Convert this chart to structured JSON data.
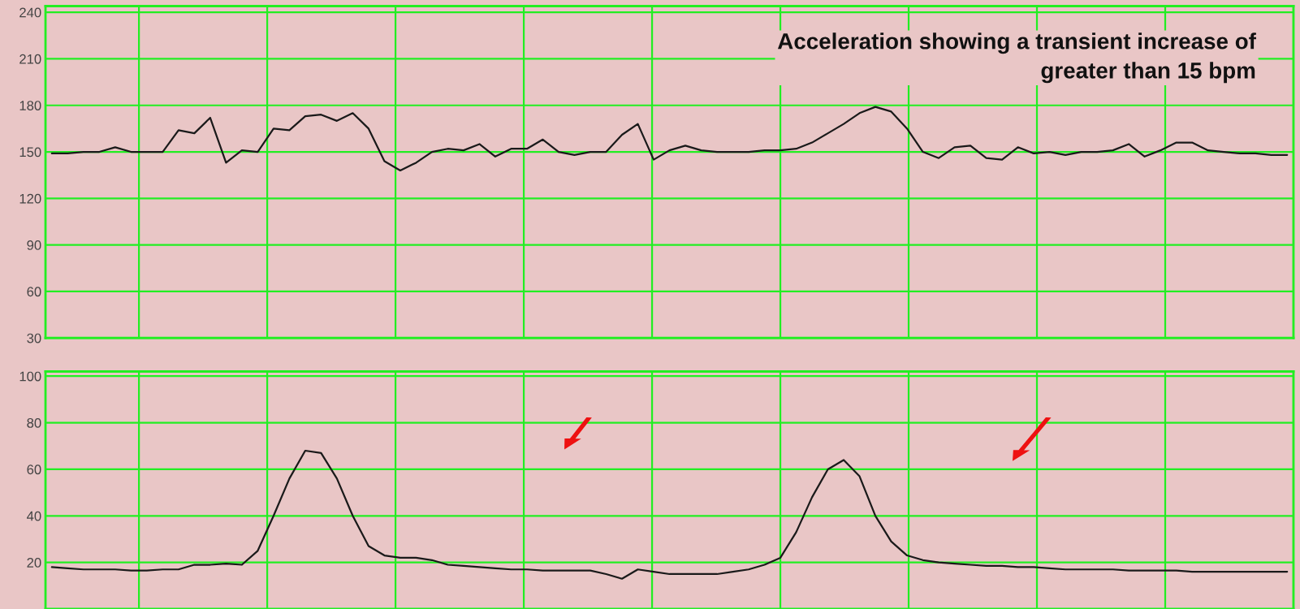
{
  "chart_data": [
    {
      "type": "line",
      "color": "#1a1a1a",
      "ylim": [
        30,
        244
      ],
      "yticks": [
        30,
        60,
        90,
        120,
        150,
        180,
        210,
        240
      ],
      "grid": true,
      "tick_labels": "y",
      "line_style": "solid",
      "categories": [
        null,
        null,
        null,
        null,
        null,
        null,
        null,
        null,
        null,
        null,
        null,
        null,
        null,
        null,
        null,
        null,
        null,
        null,
        null,
        null,
        null,
        null,
        null,
        null,
        null,
        null,
        null,
        null,
        null,
        null,
        null,
        null,
        null,
        null,
        null,
        null,
        null,
        null,
        null,
        null,
        null,
        null,
        null,
        null,
        null,
        null,
        null,
        null,
        null,
        null,
        null,
        null,
        null,
        null,
        null,
        null,
        null,
        null,
        null,
        null,
        null,
        null,
        null,
        null,
        null,
        null,
        null,
        null,
        null,
        null,
        null,
        null,
        null,
        null,
        null,
        null,
        null,
        null,
        null
      ],
      "values": [
        149,
        149,
        150,
        150,
        153,
        150,
        150,
        150,
        164,
        162,
        172,
        143,
        151,
        150,
        165,
        164,
        173,
        174,
        170,
        175,
        165,
        144,
        138,
        143,
        150,
        152,
        151,
        155,
        147,
        152,
        152,
        158,
        150,
        148,
        150,
        150,
        161,
        168,
        145,
        151,
        154,
        151,
        150,
        150,
        150,
        151,
        151,
        152,
        156,
        162,
        168,
        175,
        179,
        176,
        165,
        150,
        146,
        153,
        154,
        146,
        145,
        153,
        149,
        150,
        148,
        150,
        150,
        151,
        155,
        147,
        151,
        156,
        156,
        151,
        150,
        149,
        149,
        148,
        148
      ],
      "annotations": [
        "Acceleration showing a transient increase of\n          greater than 15 bpm"
      ]
    },
    {
      "type": "line",
      "color": "#1a1a1a",
      "ylim": [
        0,
        102
      ],
      "yticks": [
        20,
        40,
        60,
        80,
        100
      ],
      "grid": true,
      "tick_labels": "y",
      "line_style": "solid",
      "categories": [
        null,
        null,
        null,
        null,
        null,
        null,
        null,
        null,
        null,
        null,
        null,
        null,
        null,
        null,
        null,
        null,
        null,
        null,
        null,
        null,
        null,
        null,
        null,
        null,
        null,
        null,
        null,
        null,
        null,
        null,
        null,
        null,
        null,
        null,
        null,
        null,
        null,
        null,
        null,
        null,
        null,
        null,
        null,
        null,
        null,
        null,
        null,
        null,
        null,
        null,
        null,
        null,
        null,
        null,
        null,
        null,
        null,
        null,
        null,
        null,
        null,
        null,
        null,
        null,
        null,
        null,
        null,
        null,
        null,
        null,
        null,
        null,
        null,
        null,
        null,
        null,
        null,
        null,
        null
      ],
      "values": [
        18,
        17.5,
        17,
        17,
        17,
        16.5,
        16.5,
        17,
        17,
        19,
        19,
        19.5,
        19,
        25,
        40,
        56,
        68,
        67,
        56,
        40,
        27,
        23,
        22,
        22,
        21,
        19,
        18.5,
        18,
        17.5,
        17,
        17,
        16.5,
        16.5,
        16.5,
        16.5,
        15,
        13,
        17,
        16,
        15,
        15,
        15,
        15,
        16,
        17,
        19,
        22,
        33,
        48,
        60,
        64,
        57,
        40,
        29,
        23,
        21,
        20,
        19.5,
        19,
        18.5,
        18.5,
        18,
        18,
        17.5,
        17,
        17,
        17,
        17,
        16.5,
        16.5,
        16.5,
        16.5,
        16,
        16,
        16,
        16,
        16,
        16,
        16
      ]
    }
  ]
}
